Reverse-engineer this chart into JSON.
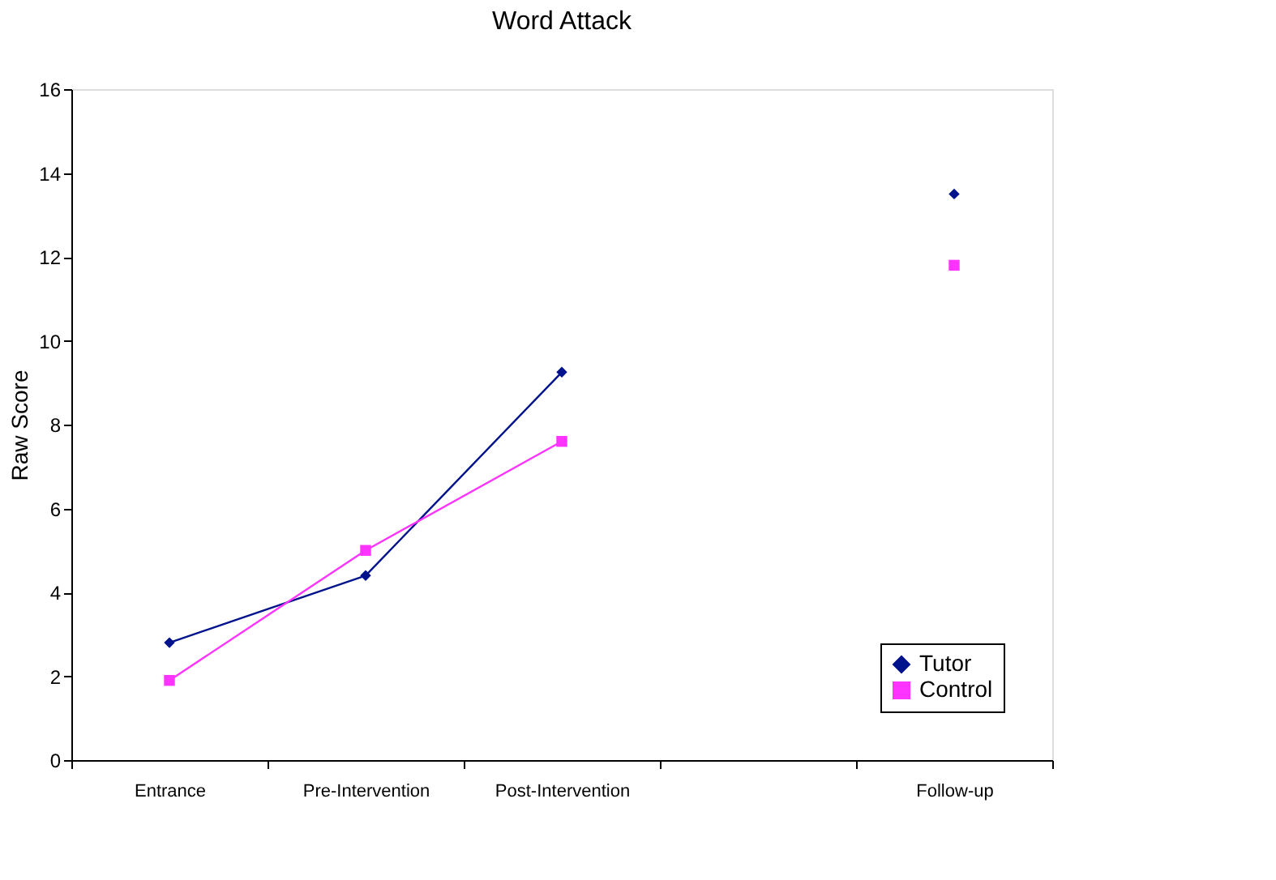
{
  "chart_data": {
    "type": "line",
    "title": "Word Attack",
    "ylabel": "Raw Score",
    "categories": [
      "Entrance",
      "Pre-Intervention",
      "Post-Intervention",
      null,
      "Follow-up"
    ],
    "series": [
      {
        "name": "Tutor",
        "color": "#00128c",
        "marker": "diamond",
        "values": [
          2.8,
          4.4,
          9.25,
          null,
          13.5
        ]
      },
      {
        "name": "Control",
        "color": "#ff33ff",
        "marker": "square",
        "values": [
          1.9,
          5.0,
          7.6,
          null,
          11.8
        ]
      }
    ],
    "ylim": [
      0,
      16
    ],
    "yticks": [
      0,
      2,
      4,
      6,
      8,
      10,
      12,
      14,
      16
    ],
    "grid": false,
    "legend": "bottom right",
    "line_style": "solid"
  }
}
